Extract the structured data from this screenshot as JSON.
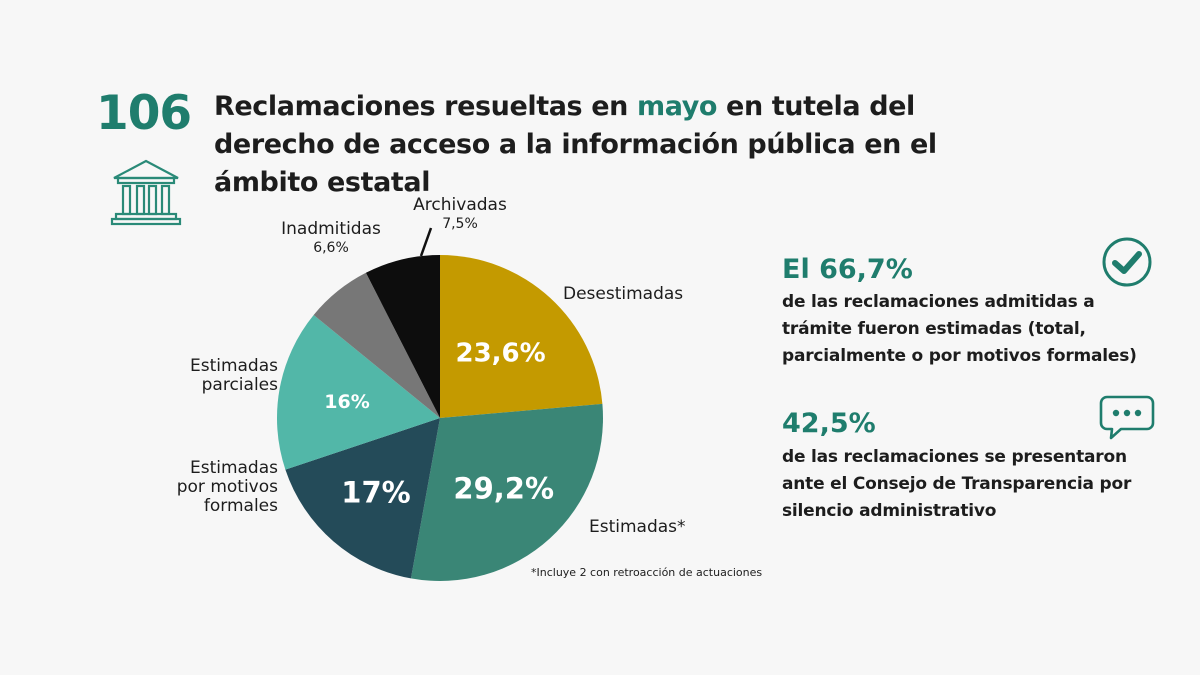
{
  "header": {
    "number": "106",
    "title_part1": "Reclamaciones resueltas en ",
    "title_highlight": "mayo",
    "title_part2": " en tutela del derecho de acceso a la información pública en el ámbito estatal"
  },
  "chart_data": {
    "type": "pie",
    "slices": [
      {
        "label": "Desestimadas",
        "value": 23.6,
        "display": "23,6%",
        "color": "#c49a00"
      },
      {
        "label": "Estimadas*",
        "value": 29.2,
        "display": "29,2%",
        "color": "#3a8676"
      },
      {
        "label": "Estimadas por motivos formales",
        "value": 17.0,
        "display": "17%",
        "color": "#244b59"
      },
      {
        "label": "Estimadas parciales",
        "value": 16.0,
        "display": "16%",
        "color": "#52b7a8"
      },
      {
        "label": "Inadmitidas",
        "value": 6.6,
        "display": "6,6%",
        "color": "#777777"
      },
      {
        "label": "Archivadas",
        "value": 7.5,
        "display": "7,5%",
        "color": "#0d0d0d"
      }
    ],
    "footnote": "*Incluye 2 con retroacción de actuaciones"
  },
  "labels": {
    "archivadas": "Archivadas",
    "archivadas_pct": "7,5%",
    "inadmitidas": "Inadmitidas",
    "inadmitidas_pct": "6,6%",
    "desestimadas": "Desestimadas",
    "estimadas_parciales_1": "Estimadas",
    "estimadas_parciales_2": "parciales",
    "estimadas_formales_1": "Estimadas",
    "estimadas_formales_2": "por motivos",
    "estimadas_formales_3": "formales",
    "estimadas": "Estimadas*"
  },
  "stats": [
    {
      "pct": "El 66,7%",
      "lines": [
        "de las reclamaciones admitidas a",
        "trámite fueron estimadas (total,",
        "parcialmente o por motivos formales)"
      ],
      "icon": "check-circle-icon"
    },
    {
      "pct": "42,5%",
      "lines": [
        "de las reclamaciones se presentaron",
        "ante el Consejo de Transparencia por",
        "silencio administrativo"
      ],
      "icon": "chat-bubble-icon"
    }
  ]
}
